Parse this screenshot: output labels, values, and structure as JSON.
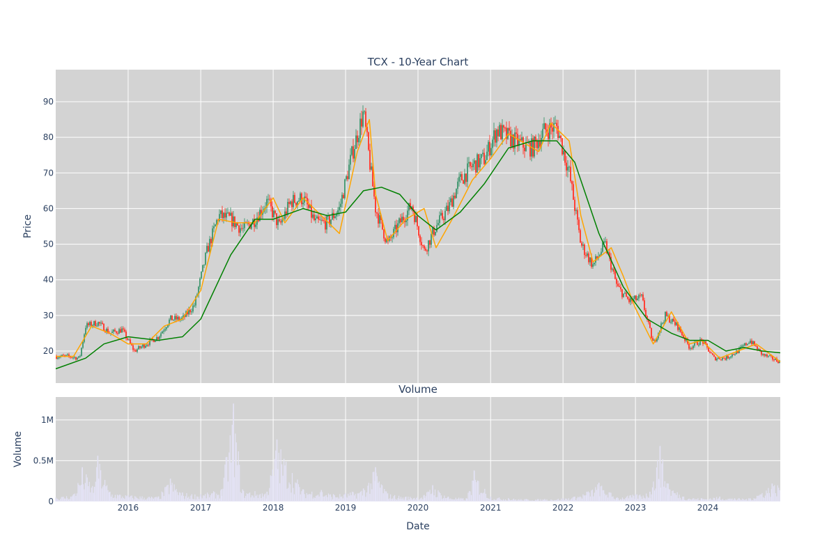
{
  "chart_data": [
    {
      "type": "candlestick",
      "title": "TCX - 10-Year Chart",
      "xlabel": "",
      "ylabel": "Price",
      "ylim": [
        11,
        99
      ],
      "yticks": [
        20,
        30,
        40,
        50,
        60,
        70,
        80,
        90
      ],
      "grid": true,
      "legend": "none",
      "colors": {
        "increasing": "#4a9b76",
        "decreasing": "#ff4136",
        "short_ma": "#ffa500",
        "long_ma": "#008000",
        "plot_bg": "#d3d3d3",
        "grid": "#ffffff",
        "text": "#2a3f5f"
      },
      "series": [
        {
          "kind": "close",
          "x": [
            "2015-01-01",
            "2015-03-01",
            "2015-05-01",
            "2015-06-01",
            "2015-08-01",
            "2015-10-01",
            "2015-12-01",
            "2016-02-01",
            "2016-04-01",
            "2016-06-01",
            "2016-08-01",
            "2016-10-01",
            "2016-12-01",
            "2017-02-01",
            "2017-04-01",
            "2017-06-01",
            "2017-08-01",
            "2017-10-01",
            "2017-12-01",
            "2018-02-01",
            "2018-04-01",
            "2018-06-01",
            "2018-08-01",
            "2018-10-01",
            "2018-12-01",
            "2019-02-01",
            "2019-04-01",
            "2019-06-01",
            "2019-08-01",
            "2019-10-01",
            "2019-12-01",
            "2020-02-01",
            "2020-04-01",
            "2020-06-01",
            "2020-08-01",
            "2020-10-01",
            "2020-12-01",
            "2021-02-01",
            "2021-04-01",
            "2021-06-01",
            "2021-08-01",
            "2021-10-01",
            "2021-12-01",
            "2022-02-01",
            "2022-04-01",
            "2022-06-01",
            "2022-08-01",
            "2022-10-01",
            "2022-12-01",
            "2023-02-01",
            "2023-04-01",
            "2023-06-01",
            "2023-08-01",
            "2023-10-01",
            "2023-12-01",
            "2024-02-01",
            "2024-04-01",
            "2024-06-01",
            "2024-08-01",
            "2024-10-01",
            "2024-12-31"
          ],
          "y": [
            18.5,
            18.5,
            18,
            27,
            28,
            25,
            26,
            20,
            22,
            24,
            29,
            29,
            33,
            48,
            58,
            57,
            54,
            57,
            62,
            55,
            62,
            63,
            56,
            56,
            60,
            75,
            87,
            60,
            50,
            56,
            61,
            48,
            55,
            60,
            68,
            72,
            74,
            82,
            80,
            78,
            77,
            82,
            83,
            70,
            50,
            44,
            50,
            38,
            34,
            35,
            22,
            30,
            27,
            21,
            23,
            18,
            18,
            20,
            23,
            19,
            17
          ]
        },
        {
          "name": "",
          "kind": "short_ma",
          "x": [
            "2015-01-01",
            "2015-04-01",
            "2015-07-01",
            "2015-10-01",
            "2016-01-01",
            "2016-04-01",
            "2016-07-01",
            "2016-10-01",
            "2017-01-01",
            "2017-04-01",
            "2017-07-01",
            "2017-10-01",
            "2018-01-01",
            "2018-03-01",
            "2018-06-01",
            "2018-09-01",
            "2018-12-01",
            "2019-03-01",
            "2019-05-01",
            "2019-06-01",
            "2019-08-01",
            "2019-11-01",
            "2020-02-01",
            "2020-04-01",
            "2020-07-01",
            "2020-10-01",
            "2021-01-01",
            "2021-04-01",
            "2021-07-01",
            "2021-09-01",
            "2021-11-01",
            "2022-02-01",
            "2022-04-01",
            "2022-06-01",
            "2022-09-01",
            "2022-11-01",
            "2023-01-01",
            "2023-04-01",
            "2023-07-01",
            "2023-10-01",
            "2023-12-01",
            "2024-03-01",
            "2024-06-01",
            "2024-09-01",
            "2024-12-31"
          ],
          "y": [
            18.5,
            18.5,
            27,
            25,
            22,
            22,
            27,
            29,
            37,
            57,
            56,
            56,
            63,
            56,
            63,
            58,
            53,
            76,
            85,
            64,
            51,
            57,
            60,
            49,
            58,
            68,
            74,
            81,
            78,
            76,
            84,
            79,
            58,
            45,
            49,
            41,
            32,
            22,
            31,
            22,
            23,
            18,
            20,
            22,
            17
          ]
        },
        {
          "name": "",
          "kind": "long_ma",
          "x": [
            "2015-01-01",
            "2015-06-01",
            "2015-09-01",
            "2016-01-01",
            "2016-06-01",
            "2016-10-01",
            "2017-01-01",
            "2017-06-01",
            "2017-10-01",
            "2018-01-01",
            "2018-06-01",
            "2018-10-01",
            "2019-01-01",
            "2019-04-01",
            "2019-07-01",
            "2019-10-01",
            "2020-01-01",
            "2020-04-01",
            "2020-08-01",
            "2020-12-01",
            "2021-04-01",
            "2021-08-01",
            "2021-12-01",
            "2022-03-01",
            "2022-07-01",
            "2022-11-01",
            "2023-03-01",
            "2023-07-01",
            "2023-10-01",
            "2024-01-01",
            "2024-04-01",
            "2024-07-01",
            "2024-10-01",
            "2024-12-31"
          ],
          "y": [
            15,
            18,
            22,
            24,
            23,
            24,
            29,
            47,
            57,
            57,
            60,
            58,
            59,
            65,
            66,
            64,
            58,
            54,
            59,
            67,
            77,
            79,
            79,
            73,
            53,
            38,
            29,
            25,
            23,
            23,
            20,
            21,
            20,
            19.5
          ]
        }
      ]
    },
    {
      "type": "bar",
      "title": "Volume",
      "xlabel": "Date",
      "ylabel": "Volume",
      "ylim": [
        0,
        1280000
      ],
      "yticks": [
        0,
        500000,
        1000000
      ],
      "ytick_labels": [
        "0",
        "0.5M",
        "1M"
      ],
      "xticks": [
        "2016",
        "2017",
        "2018",
        "2019",
        "2020",
        "2021",
        "2022",
        "2023",
        "2024"
      ],
      "grid": true,
      "colors": {
        "bar": "#e4e3f6",
        "plot_bg": "#d3d3d3"
      },
      "x": [
        "2015-01-01",
        "2015-04-01",
        "2015-05-15",
        "2015-07-15",
        "2015-08-01",
        "2015-10-01",
        "2016-01-01",
        "2016-06-01",
        "2016-08-01",
        "2016-10-01",
        "2017-01-01",
        "2017-04-15",
        "2017-06-15",
        "2017-08-01",
        "2017-12-01",
        "2018-01-20",
        "2018-06-01",
        "2018-09-01",
        "2018-11-01",
        "2019-01-01",
        "2019-04-01",
        "2019-06-01",
        "2019-08-01",
        "2019-11-01",
        "2020-02-01",
        "2020-03-15",
        "2020-06-01",
        "2020-09-01",
        "2020-10-10",
        "2021-01-01",
        "2021-04-01",
        "2021-07-01",
        "2021-10-01",
        "2022-01-01",
        "2022-03-01",
        "2022-05-01",
        "2022-07-01",
        "2022-10-01",
        "2023-01-01",
        "2023-03-15",
        "2023-05-05",
        "2023-06-15",
        "2023-09-01",
        "2023-12-01",
        "2024-03-01",
        "2024-05-15",
        "2024-08-01",
        "2024-11-20"
      ],
      "values": [
        50000,
        90000,
        420000,
        180000,
        560000,
        120000,
        80000,
        60000,
        280000,
        110000,
        90000,
        150000,
        1200000,
        140000,
        120000,
        760000,
        150000,
        140000,
        90000,
        100000,
        160000,
        420000,
        100000,
        60000,
        80000,
        200000,
        60000,
        40000,
        380000,
        60000,
        40000,
        30000,
        30000,
        40000,
        60000,
        120000,
        230000,
        50000,
        90000,
        120000,
        680000,
        220000,
        60000,
        40000,
        60000,
        40000,
        40000,
        220000
      ]
    }
  ]
}
